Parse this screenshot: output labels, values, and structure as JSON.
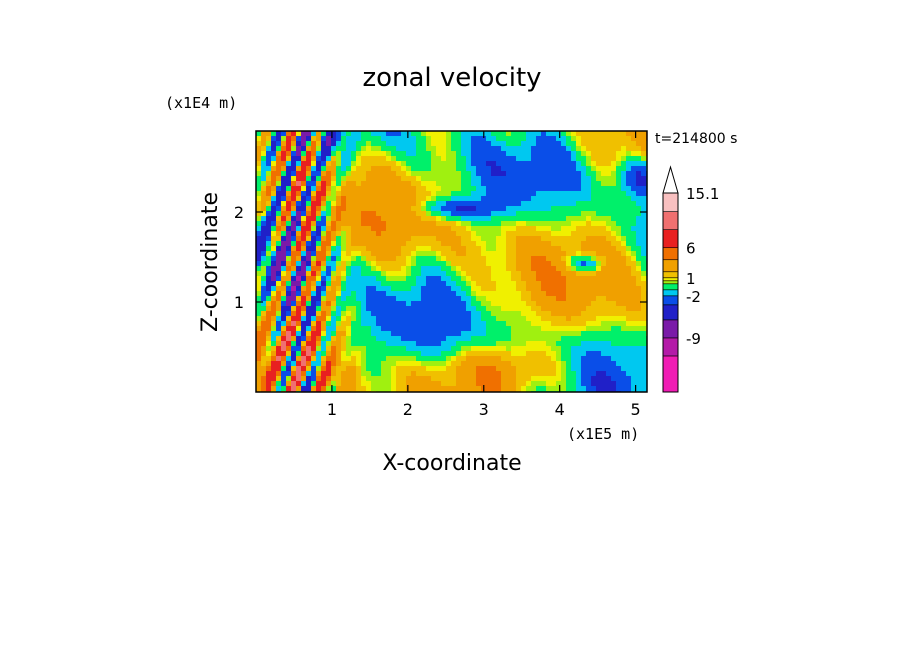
{
  "chart_data": {
    "type": "heatmap",
    "title": "zonal velocity",
    "xlabel": "X-coordinate",
    "ylabel": "Z-coordinate",
    "x_unit": "(x1E5 m)",
    "y_unit": "(x1E4 m)",
    "time_label": "t=214800 s",
    "xlim": [
      0,
      5.15
    ],
    "ylim": [
      0,
      2.9
    ],
    "x_ticks": [
      "1",
      "2",
      "3",
      "4",
      "5"
    ],
    "y_ticks": [
      "1",
      "2"
    ],
    "x_tick_values": [
      1,
      2,
      3,
      4,
      5
    ],
    "y_tick_values": [
      1,
      2
    ],
    "colorbar": {
      "labels": [
        "15.1",
        "6",
        "1",
        "-2",
        "-9"
      ],
      "label_values": [
        15.1,
        6,
        1,
        -2,
        -9
      ],
      "bins": [
        {
          "lo": -18,
          "hi": -12,
          "color": "#f01cb4"
        },
        {
          "lo": -12,
          "hi": -9,
          "color": "#b41aa8"
        },
        {
          "lo": -9,
          "hi": -6,
          "color": "#7a1aa8"
        },
        {
          "lo": -6,
          "hi": -3.5,
          "color": "#2020c8"
        },
        {
          "lo": -3.5,
          "hi": -2,
          "color": "#0a4ee8"
        },
        {
          "lo": -2,
          "hi": -1,
          "color": "#00c8f0"
        },
        {
          "lo": -1,
          "hi": 0,
          "color": "#00f06a"
        },
        {
          "lo": 0,
          "hi": 0.5,
          "color": "#a0f010"
        },
        {
          "lo": 0.5,
          "hi": 1,
          "color": "#f0f000"
        },
        {
          "lo": 1,
          "hi": 2,
          "color": "#f0c000"
        },
        {
          "lo": 2,
          "hi": 4,
          "color": "#f0a000"
        },
        {
          "lo": 4,
          "hi": 6,
          "color": "#f07000"
        },
        {
          "lo": 6,
          "hi": 9,
          "color": "#e82020"
        },
        {
          "lo": 9,
          "hi": 12,
          "color": "#f07070"
        },
        {
          "lo": 12,
          "hi": 15.1,
          "color": "#f8c0c0"
        }
      ],
      "extend_max": true
    }
  }
}
